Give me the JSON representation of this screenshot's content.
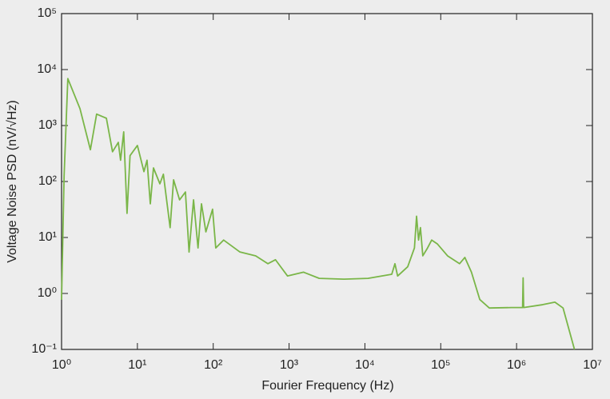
{
  "chart_data": {
    "type": "line",
    "x_label": "Fourier Frequency (Hz)",
    "y_label": "Voltage Noise PSD (nV/√Hz)",
    "xscale": "log",
    "yscale": "log",
    "xlim": [
      1,
      10000000
    ],
    "ylim": [
      0.1,
      100000
    ],
    "xticks": [
      {
        "value": 1,
        "label": "10⁰"
      },
      {
        "value": 10,
        "label": "10¹"
      },
      {
        "value": 100,
        "label": "10²"
      },
      {
        "value": 1000,
        "label": "10³"
      },
      {
        "value": 10000,
        "label": "10⁴"
      },
      {
        "value": 100000,
        "label": "10⁵"
      },
      {
        "value": 1000000,
        "label": "10⁶"
      },
      {
        "value": 10000000,
        "label": "10⁷"
      }
    ],
    "yticks": [
      {
        "value": 0.1,
        "label": "10⁻¹"
      },
      {
        "value": 1,
        "label": "10⁰"
      },
      {
        "value": 10,
        "label": "10¹"
      },
      {
        "value": 100,
        "label": "10²"
      },
      {
        "value": 1000,
        "label": "10³"
      },
      {
        "value": 10000,
        "label": "10⁴"
      },
      {
        "value": 100000,
        "label": "10⁵"
      }
    ],
    "grid": false,
    "series": [
      {
        "color": "#7ab648",
        "x": [
          1,
          1.08,
          1.21,
          1.75,
          2.4,
          2.9,
          3.9,
          4.7,
          5.6,
          6.0,
          6.6,
          7.3,
          8.0,
          10,
          12.2,
          13.4,
          14.8,
          16.3,
          19.8,
          22,
          27,
          30,
          36,
          43,
          48,
          55,
          63,
          70,
          80,
          98,
          108,
          137,
          225,
          363,
          525,
          662,
          955,
          1550,
          2500,
          5300,
          11000,
          22600,
          24900,
          27000,
          36700,
          45000,
          48000,
          51000,
          54000,
          58000,
          67000,
          76000,
          90000,
          123000,
          177000,
          208000,
          254000,
          327000,
          437000,
          850000,
          1200000,
          1220000,
          1240000,
          2200000,
          3200000,
          4100000,
          5800000
        ],
        "values": [
          0.77,
          126,
          6900,
          2000,
          370,
          1600,
          1350,
          340,
          500,
          240,
          770,
          27,
          290,
          440,
          150,
          240,
          40,
          175,
          91,
          135,
          15,
          107,
          47,
          65,
          5.5,
          47,
          6.5,
          40,
          12.6,
          32,
          6.5,
          9,
          5.5,
          4.7,
          3.4,
          4,
          2.05,
          2.4,
          1.86,
          1.8,
          1.86,
          2.2,
          3.4,
          2.05,
          3,
          6.5,
          24,
          9,
          15,
          4.7,
          6.5,
          9,
          7.7,
          4.7,
          3.4,
          4.4,
          2.4,
          0.78,
          0.55,
          0.56,
          0.56,
          1.9,
          0.56,
          0.63,
          0.7,
          0.55,
          0.1
        ]
      }
    ]
  }
}
